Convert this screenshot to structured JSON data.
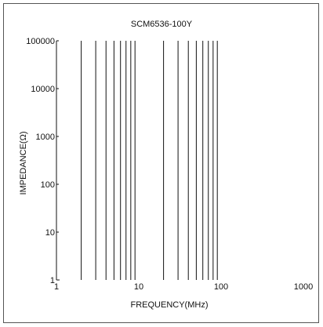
{
  "chart_data": {
    "type": "line",
    "title": "SCM6536-100Y",
    "xlabel": "FREQUENCY(MHz)",
    "ylabel": "IMPEDANCE(Ω)",
    "x_scale": "log",
    "y_scale": "log",
    "xlim": [
      1,
      1000
    ],
    "ylim": [
      1,
      100000
    ],
    "x_ticks": [
      "1",
      "10",
      "100",
      "1000"
    ],
    "y_ticks": [
      "1",
      "10",
      "100",
      "1000",
      "10000",
      "100000"
    ],
    "grid": {
      "vertical": true,
      "horizontal": false,
      "vertical_lines_mhz": [
        2,
        3,
        4,
        5,
        6,
        7,
        8,
        9,
        20,
        30,
        40,
        50,
        60,
        70,
        80,
        90
      ],
      "range_mhz": [
        2,
        90
      ]
    },
    "series": [],
    "colors": {
      "grid": "#111111",
      "axis": "#111111",
      "frame": "#555555"
    }
  }
}
